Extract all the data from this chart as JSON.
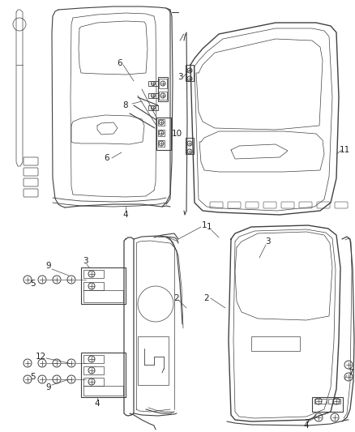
{
  "bg_color": "#ffffff",
  "fig_width": 4.38,
  "fig_height": 5.33,
  "dpi": 100,
  "line_color": "#404040",
  "line_color_light": "#707070",
  "label_color": "#222222",
  "label_fontsize": 7.5,
  "leader_lw": 0.55,
  "main_lw": 0.9,
  "thin_lw": 0.5
}
